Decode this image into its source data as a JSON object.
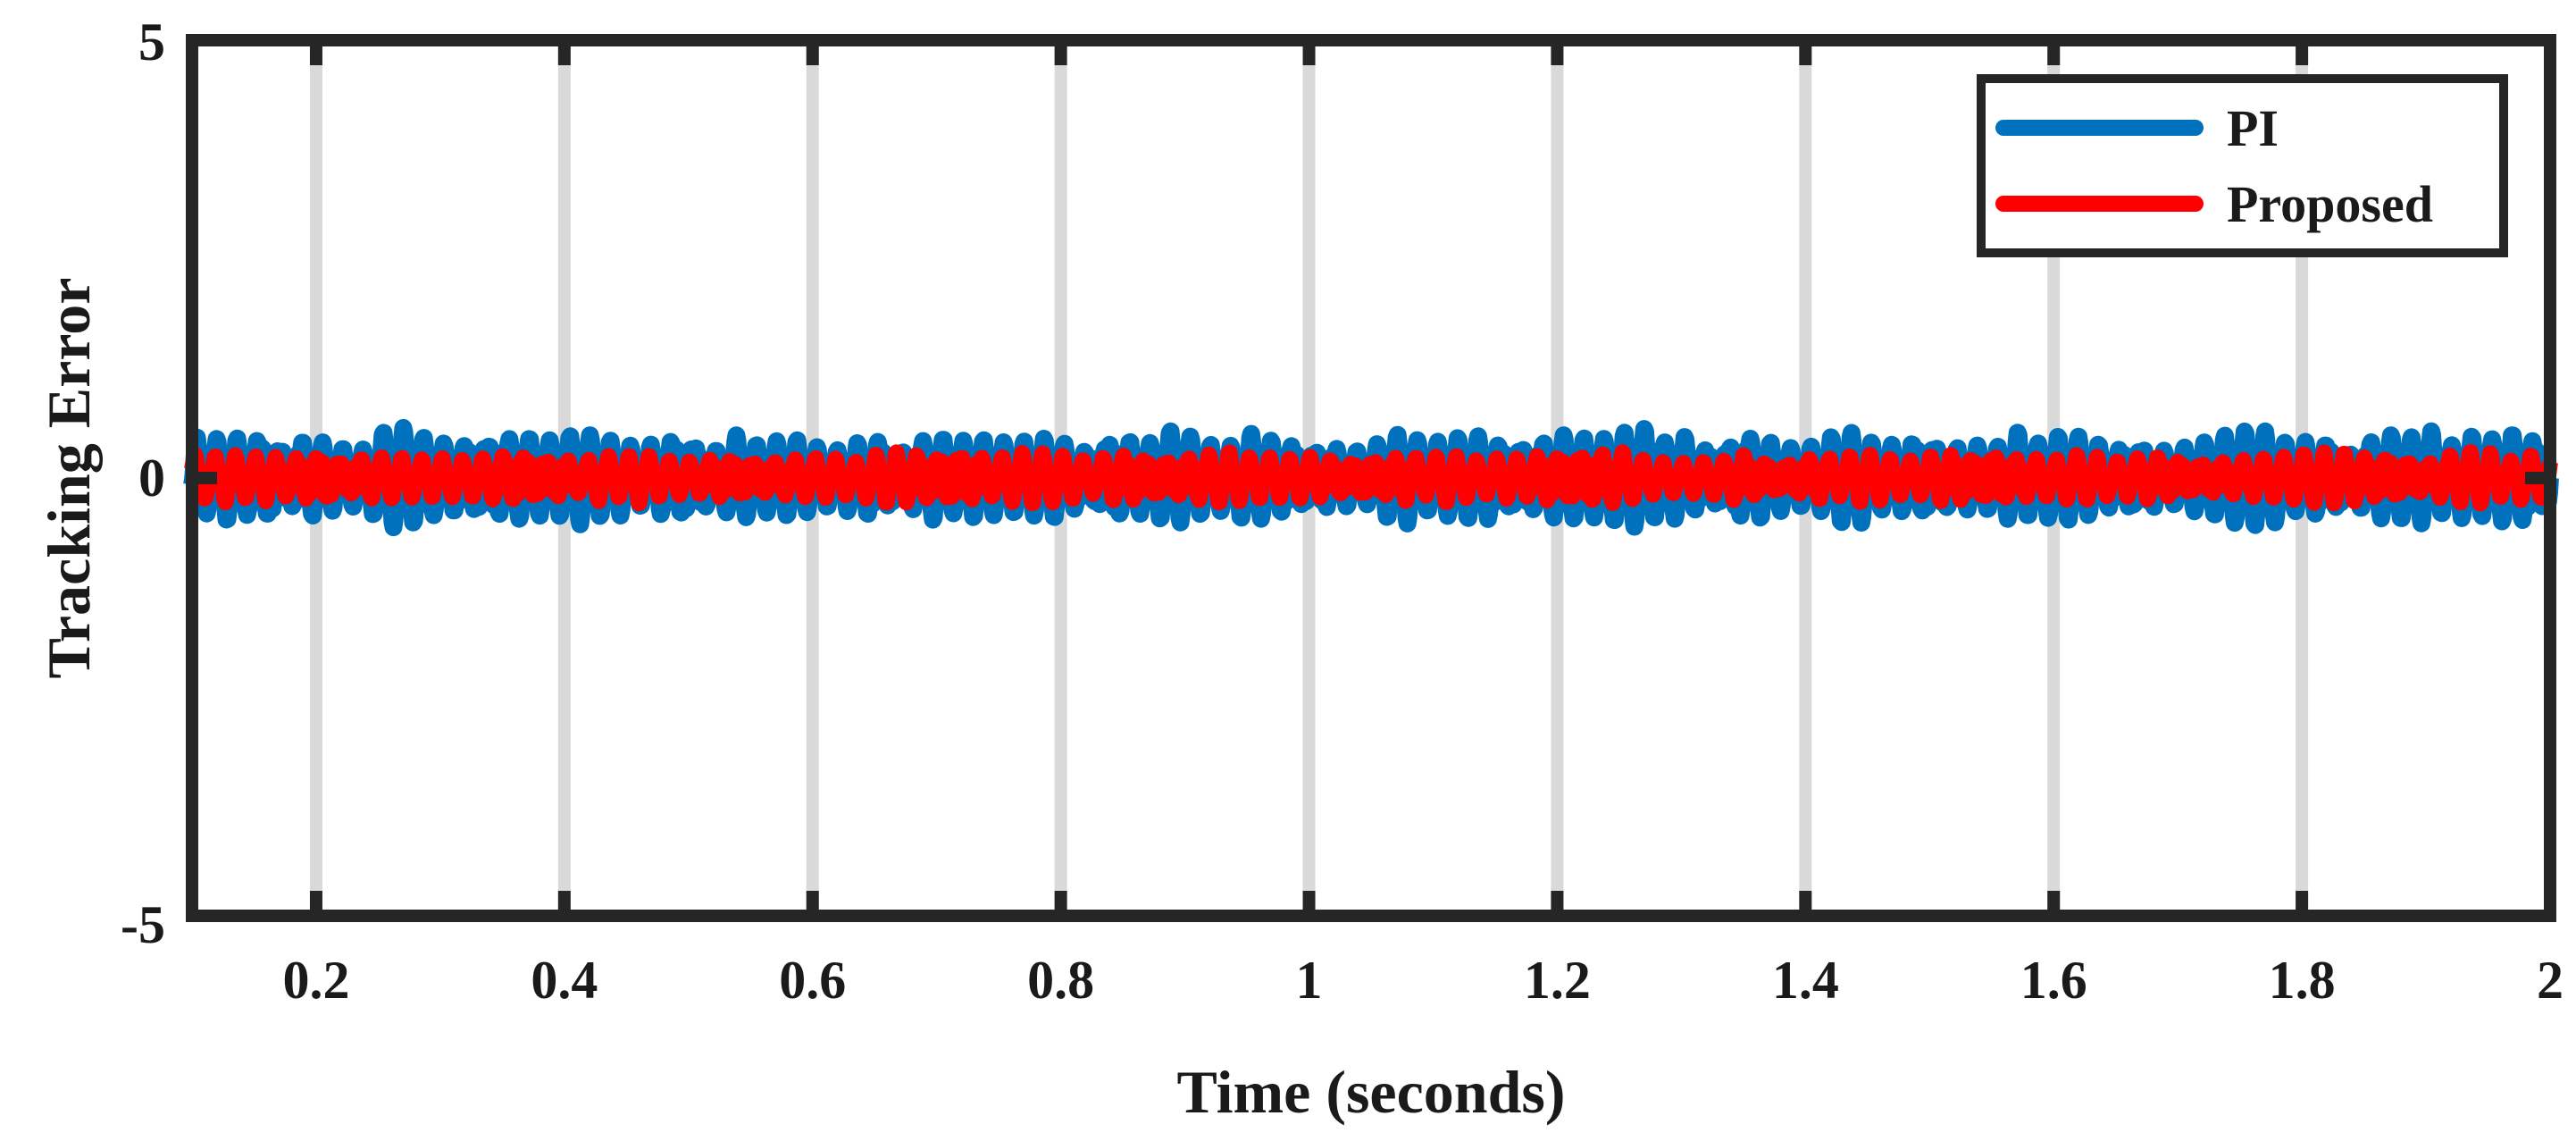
{
  "chart_data": {
    "type": "line",
    "xlabel": "Time (seconds)",
    "ylabel": "Tracking Error",
    "xlim": [
      0.1,
      2.0
    ],
    "ylim": [
      -5,
      5
    ],
    "x_ticks": [
      0.2,
      0.4,
      0.6,
      0.8,
      1.0,
      1.2,
      1.4,
      1.6,
      1.8,
      2.0
    ],
    "x_tick_labels": [
      "0.2",
      "0.4",
      "0.6",
      "0.8",
      "1",
      "1.2",
      "1.4",
      "1.6",
      "1.8",
      "2"
    ],
    "y_ticks": [
      -5,
      0,
      5
    ],
    "y_tick_labels": [
      "-5",
      "0",
      "5"
    ],
    "grid": "vertical",
    "legend_position": "top-right",
    "colors": {
      "grid": "#d9d9d9",
      "frame": "#262626"
    },
    "series": [
      {
        "name": "PI",
        "color": "#0072BD",
        "amplitude_approx": 0.55,
        "oscillation_frequency_hz_approx": 60,
        "mean": 0
      },
      {
        "name": "Proposed",
        "color": "#FF0000",
        "amplitude_approx": 0.3,
        "oscillation_frequency_hz_approx": 60,
        "mean": 0
      }
    ]
  }
}
